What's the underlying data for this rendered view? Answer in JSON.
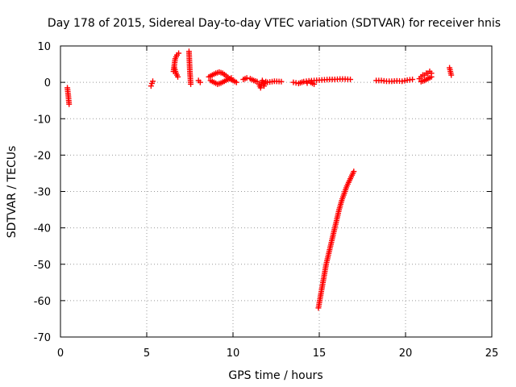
{
  "chart_data": {
    "type": "scatter",
    "title": "Day 178 of 2015, Sidereal Day-to-day VTEC variation (SDTVAR) for receiver hnis",
    "xlabel": "GPS time / hours",
    "ylabel": "SDTVAR / TECUs",
    "xlim": [
      0,
      25
    ],
    "ylim": [
      -70,
      10
    ],
    "x_ticks": [
      0,
      5,
      10,
      15,
      20,
      25
    ],
    "y_ticks": [
      10,
      0,
      -10,
      -20,
      -30,
      -40,
      -50,
      -60,
      -70
    ],
    "grid": true,
    "legend": "none",
    "marker": "plus",
    "series_color": "#ff0000",
    "segments": [
      {
        "x": [
          0.4,
          0.45,
          0.5
        ],
        "y": [
          -1.5,
          -3.5,
          -6.0
        ]
      },
      {
        "x": [
          5.25,
          5.3,
          5.35
        ],
        "y": [
          -1.0,
          -0.3,
          0.3
        ]
      },
      {
        "x": [
          6.55,
          6.65,
          6.75,
          6.85
        ],
        "y": [
          3.0,
          6.5,
          7.5,
          8.0
        ]
      },
      {
        "x": [
          6.6,
          6.7,
          6.8
        ],
        "y": [
          4.0,
          2.5,
          1.5
        ]
      },
      {
        "x": [
          7.45,
          7.5,
          7.55
        ],
        "y": [
          8.5,
          3.0,
          -0.5
        ]
      },
      {
        "x": [
          8.0,
          8.1
        ],
        "y": [
          0.5,
          0.0
        ]
      },
      {
        "x": [
          8.6,
          8.8,
          9.0,
          9.2,
          9.4,
          9.6,
          9.8,
          10.0,
          10.2
        ],
        "y": [
          1.5,
          2.0,
          2.5,
          2.8,
          2.5,
          1.8,
          1.0,
          0.5,
          0.0
        ]
      },
      {
        "x": [
          8.7,
          8.9,
          9.1,
          9.3,
          9.5,
          9.7,
          9.9
        ],
        "y": [
          0.5,
          0.0,
          -0.5,
          -0.2,
          0.3,
          0.8,
          1.2
        ]
      },
      {
        "x": [
          10.6,
          10.8,
          11.0,
          11.2,
          11.4
        ],
        "y": [
          0.8,
          1.2,
          1.0,
          0.5,
          0.2
        ]
      },
      {
        "x": [
          11.5,
          11.6,
          11.7,
          11.8,
          11.9
        ],
        "y": [
          -0.5,
          -1.5,
          0.5,
          -1.0,
          0.2
        ]
      },
      {
        "x": [
          12.0,
          12.4,
          12.8
        ],
        "y": [
          0.0,
          0.3,
          0.2
        ]
      },
      {
        "x": [
          13.5,
          13.8,
          14.1,
          14.4,
          14.7,
          15.0,
          15.3,
          15.6,
          15.9,
          16.2,
          16.5,
          16.8
        ],
        "y": [
          0.0,
          -0.3,
          0.2,
          0.4,
          0.5,
          0.6,
          0.7,
          0.8,
          0.8,
          0.9,
          0.9,
          0.8
        ]
      },
      {
        "x": [
          14.3,
          14.5,
          14.7
        ],
        "y": [
          -0.2,
          0.0,
          -0.5
        ]
      },
      {
        "x": [
          18.3,
          18.6,
          18.9,
          19.2,
          19.5,
          19.8,
          20.1,
          20.4
        ],
        "y": [
          0.5,
          0.5,
          0.3,
          0.3,
          0.4,
          0.3,
          0.6,
          0.8
        ]
      },
      {
        "x": [
          20.8,
          20.9,
          21.0,
          21.1,
          21.2,
          21.3,
          21.4,
          21.5
        ],
        "y": [
          1.0,
          1.5,
          2.0,
          2.0,
          2.5,
          2.5,
          3.0,
          2.5
        ]
      },
      {
        "x": [
          20.9,
          21.1,
          21.3,
          21.5
        ],
        "y": [
          0.2,
          0.5,
          1.0,
          1.5
        ]
      },
      {
        "x": [
          22.55,
          22.6,
          22.65
        ],
        "y": [
          4.0,
          3.0,
          2.0
        ]
      },
      {
        "x": [
          14.95,
          15.1,
          15.25,
          15.4,
          15.55,
          15.7,
          15.85,
          16.0,
          16.15,
          16.3,
          16.45,
          16.6,
          16.75,
          16.9,
          17.0
        ],
        "y": [
          -62.0,
          -58.0,
          -54.0,
          -50.0,
          -47.0,
          -44.0,
          -41.0,
          -38.0,
          -35.0,
          -32.5,
          -30.5,
          -28.5,
          -27.0,
          -25.5,
          -24.5
        ]
      }
    ]
  }
}
